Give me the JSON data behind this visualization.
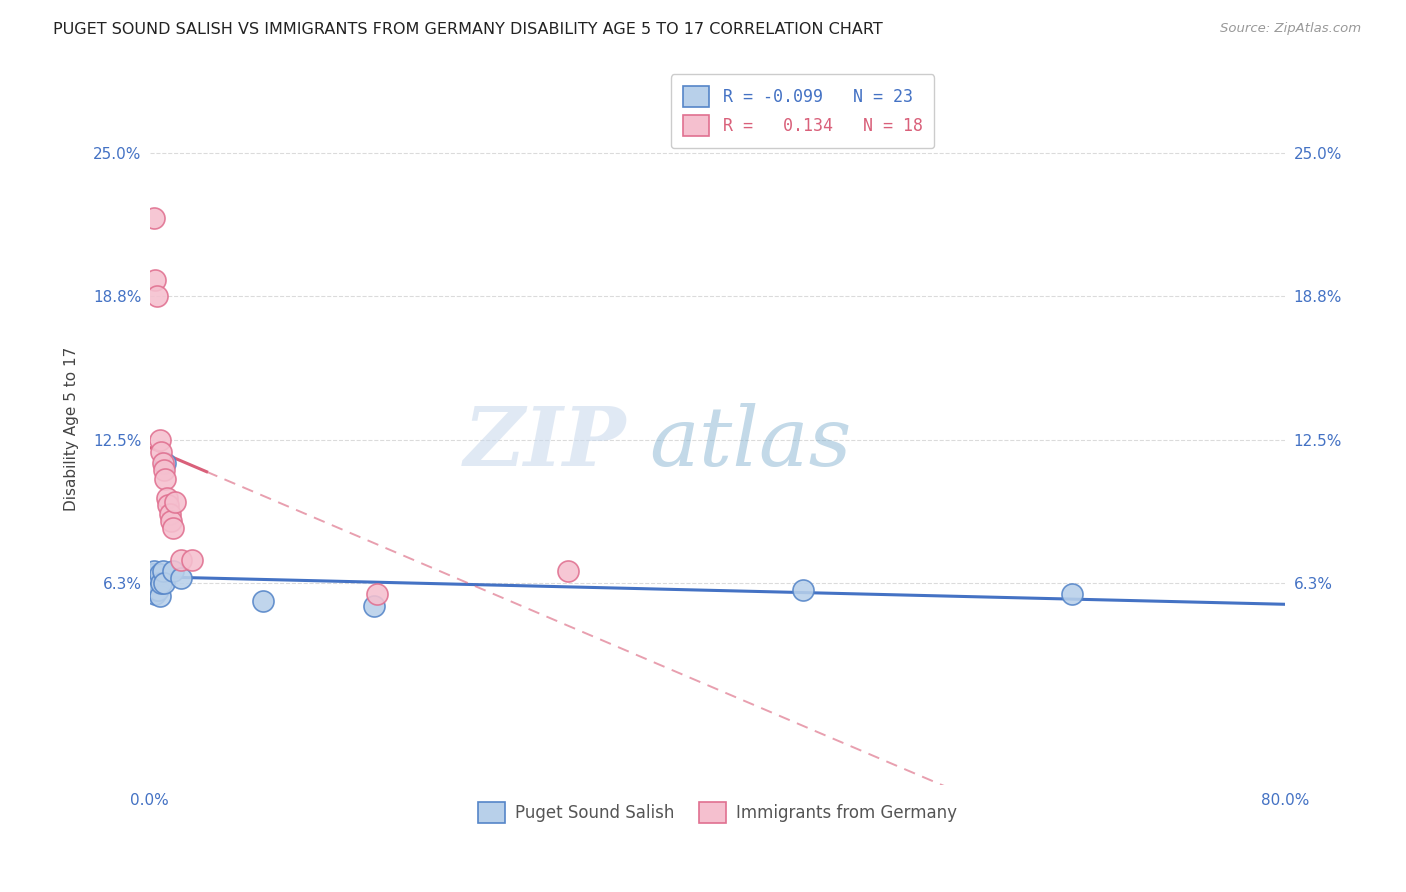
{
  "title": "PUGET SOUND SALISH VS IMMIGRANTS FROM GERMANY DISABILITY AGE 5 TO 17 CORRELATION CHART",
  "source": "Source: ZipAtlas.com",
  "ylabel": "Disability Age 5 to 17",
  "xlim": [
    0.0,
    0.8
  ],
  "ylim": [
    -0.025,
    0.285
  ],
  "yticks": [
    0.063,
    0.125,
    0.188,
    0.25
  ],
  "ytick_labels": [
    "6.3%",
    "12.5%",
    "18.8%",
    "25.0%"
  ],
  "xticks": [
    0.0,
    0.2,
    0.4,
    0.6,
    0.8
  ],
  "xtick_labels": [
    "0.0%",
    "",
    "",
    "",
    "80.0%"
  ],
  "series1_name": "Puget Sound Salish",
  "series1_R": "-0.099",
  "series1_N": "23",
  "series1_face_color": "#b8d0ea",
  "series1_edge_color": "#5585c8",
  "series1_line_color": "#4472c4",
  "series2_name": "Immigrants from Germany",
  "series2_R": "0.134",
  "series2_N": "18",
  "series2_face_color": "#f5c0cf",
  "series2_edge_color": "#e07090",
  "series2_line_color": "#d9607a",
  "watermark_zip": "ZIP",
  "watermark_atlas": "atlas",
  "background_color": "#ffffff",
  "grid_color": "#cccccc",
  "title_fontsize": 11.5,
  "axis_label_fontsize": 11,
  "tick_fontsize": 11,
  "legend_fontsize": 12
}
